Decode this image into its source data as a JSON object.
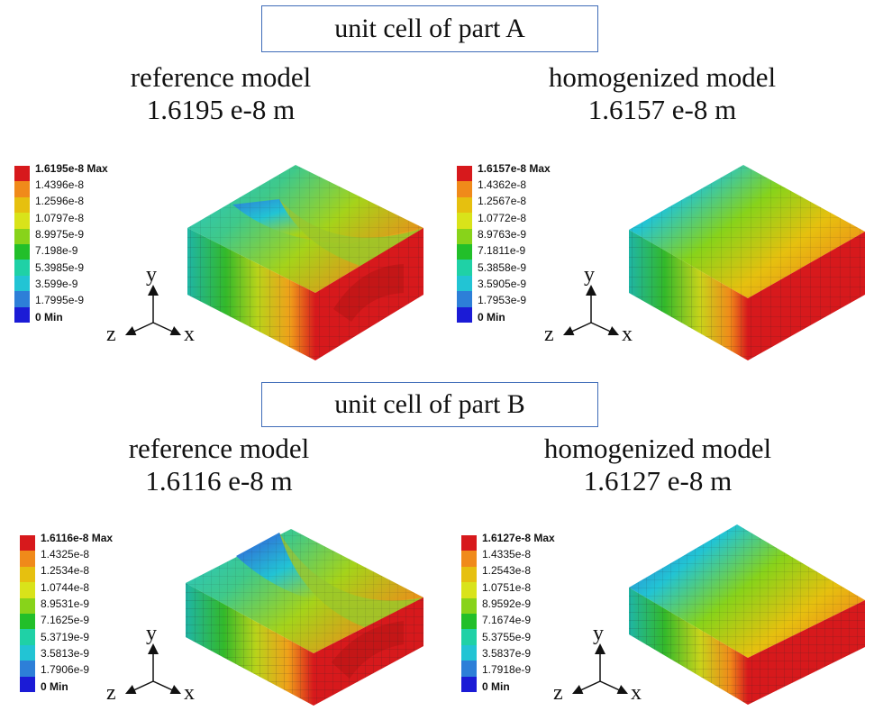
{
  "parts": [
    {
      "title": "unit cell of part A",
      "panels": [
        {
          "label": "reference model",
          "value": "1.6195 e-8 m",
          "legend": [
            "1.6195e-8 Max",
            "1.4396e-8",
            "1.2596e-8",
            "1.0797e-8",
            "8.9975e-9",
            "7.198e-9",
            "5.3985e-9",
            "3.599e-9",
            "1.7995e-9",
            "0 Min"
          ],
          "axes": {
            "y": "y",
            "z": "z",
            "x": "x"
          }
        },
        {
          "label": "homogenized model",
          "value": "1.6157 e-8 m",
          "legend": [
            "1.6157e-8 Max",
            "1.4362e-8",
            "1.2567e-8",
            "1.0772e-8",
            "8.9763e-9",
            "7.1811e-9",
            "5.3858e-9",
            "3.5905e-9",
            "1.7953e-9",
            "0 Min"
          ],
          "axes": {
            "y": "y",
            "z": "z",
            "x": "x"
          }
        }
      ]
    },
    {
      "title": "unit cell of part B",
      "panels": [
        {
          "label": "reference model",
          "value": "1.6116 e-8 m",
          "legend": [
            "1.6116e-8 Max",
            "1.4325e-8",
            "1.2534e-8",
            "1.0744e-8",
            "8.9531e-9",
            "7.1625e-9",
            "5.3719e-9",
            "3.5813e-9",
            "1.7906e-9",
            "0 Min"
          ],
          "axes": {
            "y": "y",
            "z": "z",
            "x": "x"
          }
        },
        {
          "label": "homogenized model",
          "value": "1.6127 e-8 m",
          "legend": [
            "1.6127e-8 Max",
            "1.4335e-8",
            "1.2543e-8",
            "1.0751e-8",
            "8.9592e-9",
            "7.1674e-9",
            "5.3755e-9",
            "3.5837e-9",
            "1.7918e-9",
            "0 Min"
          ],
          "axes": {
            "y": "y",
            "z": "z",
            "x": "x"
          }
        }
      ]
    }
  ],
  "colormap": [
    "#d7191c",
    "#f08a1a",
    "#e6c00f",
    "#d9e31a",
    "#88d31a",
    "#22bf2a",
    "#1fd1a6",
    "#22c4d4",
    "#2d7fd8",
    "#1b1bd6"
  ]
}
